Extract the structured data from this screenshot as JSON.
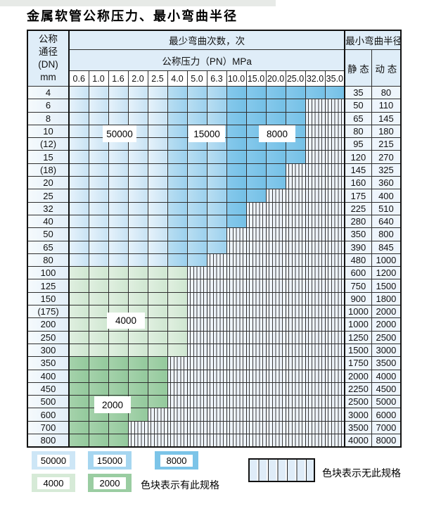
{
  "page_title": "金属软管公称压力、最小弯曲半径",
  "table": {
    "dn_header_lines": [
      "公称",
      "通径",
      "(DN)",
      "mm"
    ],
    "bend_cycles_header": "最少弯曲次数，次",
    "pressure_header": "公称压力（PN）MPa",
    "bend_radius_header": "最小弯曲半径",
    "static_header": "静 态",
    "dynamic_header": "动 态",
    "pressure_columns": [
      "0.6",
      "1.0",
      "1.6",
      "2.0",
      "2.5",
      "4.0",
      "5.0",
      "6.3",
      "10.0",
      "15.0",
      "20.0",
      "25.0",
      "32.0",
      "35.0"
    ],
    "cell_code_meaning": {
      "b1": "50000",
      "b2": "15000",
      "b3": "8000",
      "g1": "4000",
      "g2": "2000",
      "h": "no-spec"
    },
    "rows": [
      {
        "dn": "4",
        "cells": [
          "b1",
          "b1",
          "b1",
          "b1",
          "b1",
          "b2",
          "b2",
          "b2",
          "b3",
          "b3",
          "b3",
          "b3",
          "b3",
          "b3"
        ],
        "static": "35",
        "dynamic": "80"
      },
      {
        "dn": "6",
        "cells": [
          "b1",
          "b1",
          "b1",
          "b1",
          "b1",
          "b2",
          "b2",
          "b2",
          "b3",
          "b3",
          "b3",
          "b3",
          "h",
          "h"
        ],
        "static": "50",
        "dynamic": "110"
      },
      {
        "dn": "8",
        "cells": [
          "b1",
          "b1",
          "b1",
          "b1",
          "b1",
          "b2",
          "b2",
          "b2",
          "b3",
          "b3",
          "b3",
          "b3",
          "h",
          "h"
        ],
        "static": "65",
        "dynamic": "145"
      },
      {
        "dn": "10",
        "cells": [
          "b1",
          "b1",
          "b1",
          "b1",
          "b1",
          "b2",
          "b2",
          "b2",
          "b3",
          "b3",
          "b3",
          "b3",
          "h",
          "h"
        ],
        "static": "80",
        "dynamic": "180"
      },
      {
        "dn": "(12)",
        "cells": [
          "b1",
          "b1",
          "b1",
          "b1",
          "b1",
          "b2",
          "b2",
          "b2",
          "b3",
          "b3",
          "b3",
          "b3",
          "h",
          "h"
        ],
        "static": "95",
        "dynamic": "215"
      },
      {
        "dn": "15",
        "cells": [
          "b1",
          "b1",
          "b1",
          "b1",
          "b1",
          "b2",
          "b2",
          "b2",
          "b3",
          "b3",
          "b3",
          "b3",
          "h",
          "h"
        ],
        "static": "120",
        "dynamic": "270"
      },
      {
        "dn": "(18)",
        "cells": [
          "b1",
          "b1",
          "b1",
          "b1",
          "b1",
          "b2",
          "b2",
          "b2",
          "b3",
          "b3",
          "b3",
          "h",
          "h",
          "h"
        ],
        "static": "145",
        "dynamic": "325"
      },
      {
        "dn": "20",
        "cells": [
          "b1",
          "b1",
          "b1",
          "b1",
          "b1",
          "b2",
          "b2",
          "b2",
          "b3",
          "b3",
          "b3",
          "h",
          "h",
          "h"
        ],
        "static": "160",
        "dynamic": "360"
      },
      {
        "dn": "25",
        "cells": [
          "b1",
          "b1",
          "b1",
          "b1",
          "b1",
          "b2",
          "b2",
          "b2",
          "b3",
          "b3",
          "h",
          "h",
          "h",
          "h"
        ],
        "static": "175",
        "dynamic": "400"
      },
      {
        "dn": "32",
        "cells": [
          "b1",
          "b1",
          "b1",
          "b1",
          "b1",
          "b2",
          "b2",
          "b2",
          "b3",
          "h",
          "h",
          "h",
          "h",
          "h"
        ],
        "static": "225",
        "dynamic": "510"
      },
      {
        "dn": "40",
        "cells": [
          "b1",
          "b1",
          "b1",
          "b1",
          "b1",
          "b2",
          "b2",
          "b2",
          "b3",
          "h",
          "h",
          "h",
          "h",
          "h"
        ],
        "static": "280",
        "dynamic": "640"
      },
      {
        "dn": "50",
        "cells": [
          "b1",
          "b1",
          "b1",
          "b1",
          "b1",
          "b2",
          "b2",
          "b2",
          "h",
          "h",
          "h",
          "h",
          "h",
          "h"
        ],
        "static": "350",
        "dynamic": "800"
      },
      {
        "dn": "65",
        "cells": [
          "b1",
          "b1",
          "b1",
          "b1",
          "b1",
          "b2",
          "b2",
          "b2",
          "h",
          "h",
          "h",
          "h",
          "h",
          "h"
        ],
        "static": "390",
        "dynamic": "845"
      },
      {
        "dn": "80",
        "cells": [
          "b1",
          "b1",
          "b1",
          "b1",
          "b1",
          "b2",
          "b2",
          "h",
          "h",
          "h",
          "h",
          "h",
          "h",
          "h"
        ],
        "static": "480",
        "dynamic": "1000"
      },
      {
        "dn": "100",
        "cells": [
          "g1",
          "g1",
          "g1",
          "g1",
          "g1",
          "g1",
          "h",
          "h",
          "h",
          "h",
          "h",
          "h",
          "h",
          "h"
        ],
        "static": "600",
        "dynamic": "1200"
      },
      {
        "dn": "125",
        "cells": [
          "g1",
          "g1",
          "g1",
          "g1",
          "g1",
          "g1",
          "h",
          "h",
          "h",
          "h",
          "h",
          "h",
          "h",
          "h"
        ],
        "static": "750",
        "dynamic": "1500"
      },
      {
        "dn": "150",
        "cells": [
          "g1",
          "g1",
          "g1",
          "g1",
          "g1",
          "g1",
          "h",
          "h",
          "h",
          "h",
          "h",
          "h",
          "h",
          "h"
        ],
        "static": "900",
        "dynamic": "1800"
      },
      {
        "dn": "(175)",
        "cells": [
          "g1",
          "g1",
          "g1",
          "g1",
          "g1",
          "g1",
          "h",
          "h",
          "h",
          "h",
          "h",
          "h",
          "h",
          "h"
        ],
        "static": "1000",
        "dynamic": "2000"
      },
      {
        "dn": "200",
        "cells": [
          "g1",
          "g1",
          "g1",
          "g1",
          "g1",
          "g1",
          "h",
          "h",
          "h",
          "h",
          "h",
          "h",
          "h",
          "h"
        ],
        "static": "1000",
        "dynamic": "2000"
      },
      {
        "dn": "250",
        "cells": [
          "g1",
          "g1",
          "g1",
          "g1",
          "g1",
          "g1",
          "h",
          "h",
          "h",
          "h",
          "h",
          "h",
          "h",
          "h"
        ],
        "static": "1250",
        "dynamic": "2500"
      },
      {
        "dn": "300",
        "cells": [
          "g1",
          "g1",
          "g1",
          "g1",
          "g1",
          "g1",
          "h",
          "h",
          "h",
          "h",
          "h",
          "h",
          "h",
          "h"
        ],
        "static": "1500",
        "dynamic": "3000"
      },
      {
        "dn": "350",
        "cells": [
          "g2",
          "g2",
          "g2",
          "g2",
          "g2",
          "h",
          "h",
          "h",
          "h",
          "h",
          "h",
          "h",
          "h",
          "h"
        ],
        "static": "1750",
        "dynamic": "3500"
      },
      {
        "dn": "400",
        "cells": [
          "g2",
          "g2",
          "g2",
          "g2",
          "g2",
          "h",
          "h",
          "h",
          "h",
          "h",
          "h",
          "h",
          "h",
          "h"
        ],
        "static": "2000",
        "dynamic": "4000"
      },
      {
        "dn": "450",
        "cells": [
          "g2",
          "g2",
          "g2",
          "g2",
          "g2",
          "h",
          "h",
          "h",
          "h",
          "h",
          "h",
          "h",
          "h",
          "h"
        ],
        "static": "2250",
        "dynamic": "4500"
      },
      {
        "dn": "500",
        "cells": [
          "g2",
          "g2",
          "g2",
          "g2",
          "g2",
          "h",
          "h",
          "h",
          "h",
          "h",
          "h",
          "h",
          "h",
          "h"
        ],
        "static": "2500",
        "dynamic": "5000"
      },
      {
        "dn": "600",
        "cells": [
          "g2",
          "g2",
          "g2",
          "g2",
          "h",
          "h",
          "h",
          "h",
          "h",
          "h",
          "h",
          "h",
          "h",
          "h"
        ],
        "static": "3000",
        "dynamic": "6000"
      },
      {
        "dn": "700",
        "cells": [
          "g2",
          "g2",
          "g2",
          "h",
          "h",
          "h",
          "h",
          "h",
          "h",
          "h",
          "h",
          "h",
          "h",
          "h"
        ],
        "static": "3500",
        "dynamic": "7000"
      },
      {
        "dn": "800",
        "cells": [
          "g2",
          "g2",
          "g2",
          "h",
          "h",
          "h",
          "h",
          "h",
          "h",
          "h",
          "h",
          "h",
          "h",
          "h"
        ],
        "static": "4000",
        "dynamic": "8000"
      }
    ],
    "overlays": {
      "o50000": "50000",
      "o15000": "15000",
      "o8000": "8000",
      "o4000": "4000",
      "o2000": "2000"
    }
  },
  "legend": {
    "has_spec_items": [
      {
        "value": "50000",
        "color": "#cde6f6"
      },
      {
        "value": "15000",
        "color": "#a6d6f0"
      },
      {
        "value": "8000",
        "color": "#7cc4e8"
      },
      {
        "value": "4000",
        "color": "#d6ead7"
      },
      {
        "value": "2000",
        "color": "#9acda2"
      }
    ],
    "has_spec_text": "色块表示有此规格",
    "no_spec_text": "色块表示无此规格"
  },
  "colors": {
    "blue_50000": "#c8e3f4",
    "blue_50000_light": "#e6f2fb",
    "blue_15000": "#9cd1ee",
    "blue_15000_light": "#b9def2",
    "blue_8000": "#74c0e6",
    "blue_8000_light": "#86c9ec",
    "green_4000": "#cfe7d1",
    "green_4000_light": "#e0efe0",
    "green_2000": "#93c99c",
    "green_2000_light": "#a5d2ab",
    "header_bg": "#dfedf8",
    "hatch_bg": "#eef4fb"
  }
}
